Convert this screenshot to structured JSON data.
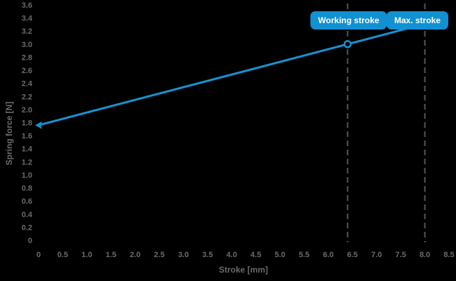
{
  "colors": {
    "background": "#000000",
    "line_blue": "#1593d3",
    "badge_blue": "#1191d1",
    "label_gray": "#6b6b6b",
    "dashed_gray": "#575757",
    "badge_text": "#ffffff"
  },
  "chart_data": {
    "type": "line",
    "title": "",
    "xlabel": "Stroke [mm]",
    "ylabel": "Spring force [N]",
    "xlim": [
      0,
      8.5
    ],
    "ylim": [
      0,
      3.6
    ],
    "grid": "off",
    "x_ticks": [
      "0",
      "0.5",
      "1.0",
      "1.5",
      "2.0",
      "2.5",
      "3.0",
      "3.5",
      "4.0",
      "4.5",
      "5.0",
      "5.5",
      "6.0",
      "6.5",
      "7.0",
      "7.5",
      "8.0",
      "8.5"
    ],
    "y_ticks": [
      "0",
      "0.2",
      "0.4",
      "0.6",
      "0.8",
      "1.0",
      "1.2",
      "1.4",
      "1.6",
      "1.8",
      "2.0",
      "2.2",
      "2.4",
      "2.6",
      "2.8",
      "3.0",
      "3.2",
      "3.4",
      "3.6"
    ],
    "series": [
      {
        "name": "spring-force-line",
        "points": [
          {
            "x": 0,
            "y": 1.76
          },
          {
            "x": 6.4,
            "y": 3.0
          },
          {
            "x": 8.0,
            "y": 3.31
          }
        ]
      }
    ],
    "markers": [
      {
        "name": "start-arrow-marker",
        "type": "left-arrow",
        "x": 0,
        "y": 1.76
      },
      {
        "name": "working-point-marker",
        "type": "open-circle",
        "x": 6.4,
        "y": 3.0
      }
    ],
    "annotations": [
      {
        "label": "Working stroke",
        "x": 6.4,
        "style": "dashed-vertical"
      },
      {
        "label": "Max. stroke",
        "x": 8.0,
        "style": "dashed-vertical"
      }
    ]
  }
}
